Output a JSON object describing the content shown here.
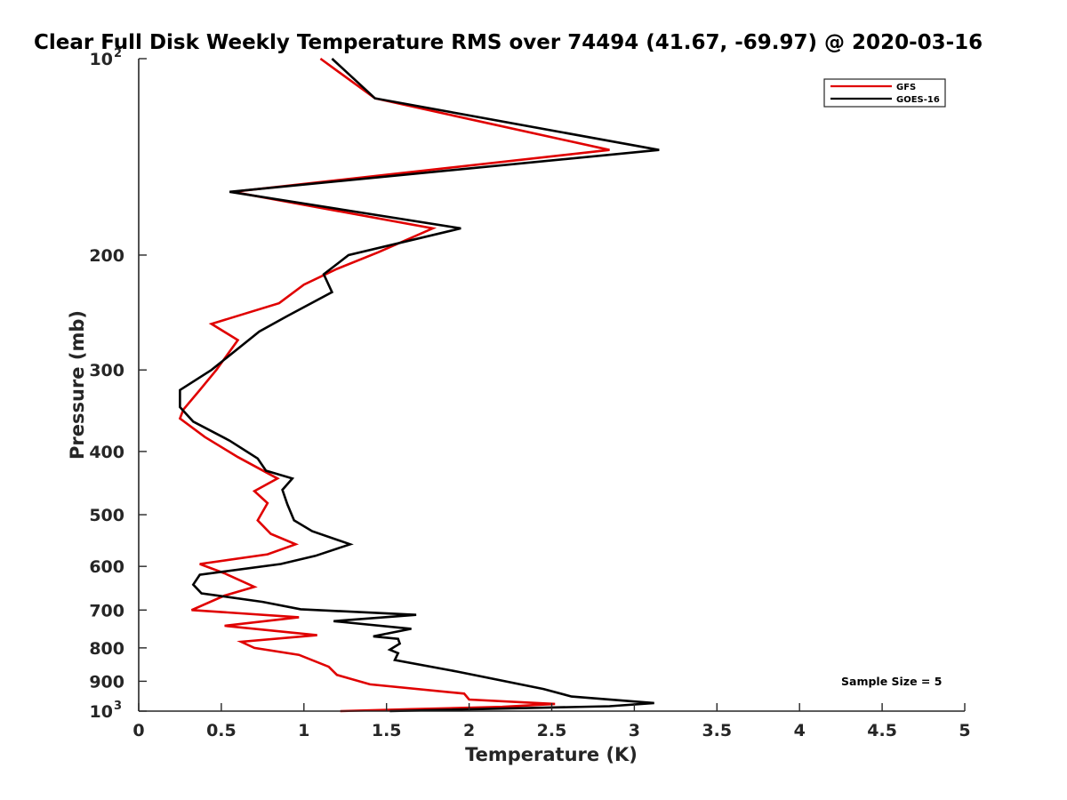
{
  "chart_data": {
    "type": "line",
    "title": "Clear Full Disk Weekly Temperature RMS over 74494 (41.67, -69.97) @ 2020-03-16",
    "xlabel": "Temperature (K)",
    "ylabel": "Pressure (mb)",
    "xlim": [
      0,
      5
    ],
    "ylim": [
      1000,
      100
    ],
    "yscale": "log",
    "x_ticks": [
      0,
      0.5,
      1,
      1.5,
      2,
      2.5,
      3,
      3.5,
      4,
      4.5,
      5
    ],
    "x_tick_labels": [
      "0",
      "0.5",
      "1",
      "1.5",
      "2",
      "2.5",
      "3",
      "3.5",
      "4",
      "4.5",
      "5"
    ],
    "y_ticks": [
      100,
      200,
      300,
      400,
      500,
      600,
      700,
      800,
      900,
      1000
    ],
    "y_tick_labels": [
      {
        "base": "10",
        "exp": "2"
      },
      {
        "base": "200",
        "exp": ""
      },
      {
        "base": "300",
        "exp": ""
      },
      {
        "base": "400",
        "exp": ""
      },
      {
        "base": "500",
        "exp": ""
      },
      {
        "base": "600",
        "exp": ""
      },
      {
        "base": "700",
        "exp": ""
      },
      {
        "base": "800",
        "exp": ""
      },
      {
        "base": "900",
        "exp": ""
      },
      {
        "base": "10",
        "exp": "3"
      }
    ],
    "legend_position": "top-right",
    "annotation": "Sample Size = 5",
    "series": [
      {
        "name": "GFS",
        "color": "#e00000",
        "points": [
          [
            1.1,
            100
          ],
          [
            1.43,
            115
          ],
          [
            2.85,
            138
          ],
          [
            0.57,
            160
          ],
          [
            1.78,
            182
          ],
          [
            1.45,
            198
          ],
          [
            1.2,
            210
          ],
          [
            1.0,
            222
          ],
          [
            0.85,
            237
          ],
          [
            0.44,
            255
          ],
          [
            0.6,
            270
          ],
          [
            0.47,
            300
          ],
          [
            0.37,
            322
          ],
          [
            0.27,
            345
          ],
          [
            0.25,
            356
          ],
          [
            0.4,
            380
          ],
          [
            0.6,
            408
          ],
          [
            0.84,
            440
          ],
          [
            0.7,
            460
          ],
          [
            0.78,
            480
          ],
          [
            0.72,
            510
          ],
          [
            0.8,
            535
          ],
          [
            0.95,
            555
          ],
          [
            0.78,
            575
          ],
          [
            0.37,
            595
          ],
          [
            0.52,
            615
          ],
          [
            0.7,
            645
          ],
          [
            0.52,
            665
          ],
          [
            0.32,
            700
          ],
          [
            0.97,
            718
          ],
          [
            0.52,
            740
          ],
          [
            1.08,
            765
          ],
          [
            0.62,
            783
          ],
          [
            0.7,
            800
          ],
          [
            0.97,
            820
          ],
          [
            1.15,
            855
          ],
          [
            1.2,
            880
          ],
          [
            1.4,
            910
          ],
          [
            1.97,
            940
          ],
          [
            2.0,
            960
          ],
          [
            2.52,
            975
          ],
          [
            2.2,
            985
          ],
          [
            1.65,
            993
          ],
          [
            1.22,
            1000
          ]
        ]
      },
      {
        "name": "GOES-16",
        "color": "#000000",
        "points": [
          [
            1.17,
            100
          ],
          [
            1.43,
            115
          ],
          [
            3.15,
            138
          ],
          [
            0.55,
            160
          ],
          [
            1.95,
            182
          ],
          [
            1.27,
            200
          ],
          [
            1.12,
            214
          ],
          [
            1.17,
            228
          ],
          [
            0.9,
            248
          ],
          [
            0.73,
            262
          ],
          [
            0.44,
            300
          ],
          [
            0.25,
            322
          ],
          [
            0.25,
            342
          ],
          [
            0.33,
            360
          ],
          [
            0.55,
            385
          ],
          [
            0.72,
            410
          ],
          [
            0.77,
            428
          ],
          [
            0.93,
            440
          ],
          [
            0.87,
            458
          ],
          [
            0.9,
            482
          ],
          [
            0.94,
            510
          ],
          [
            1.05,
            530
          ],
          [
            1.28,
            555
          ],
          [
            1.07,
            578
          ],
          [
            0.86,
            595
          ],
          [
            0.37,
            618
          ],
          [
            0.33,
            640
          ],
          [
            0.38,
            660
          ],
          [
            0.75,
            680
          ],
          [
            0.98,
            698
          ],
          [
            1.68,
            712
          ],
          [
            1.18,
            728
          ],
          [
            1.65,
            748
          ],
          [
            1.42,
            768
          ],
          [
            1.57,
            775
          ],
          [
            1.58,
            788
          ],
          [
            1.52,
            805
          ],
          [
            1.57,
            815
          ],
          [
            1.55,
            835
          ],
          [
            1.93,
            870
          ],
          [
            2.45,
            925
          ],
          [
            2.62,
            950
          ],
          [
            3.12,
            972
          ],
          [
            2.85,
            983
          ],
          [
            1.52,
            1000
          ]
        ]
      }
    ]
  }
}
